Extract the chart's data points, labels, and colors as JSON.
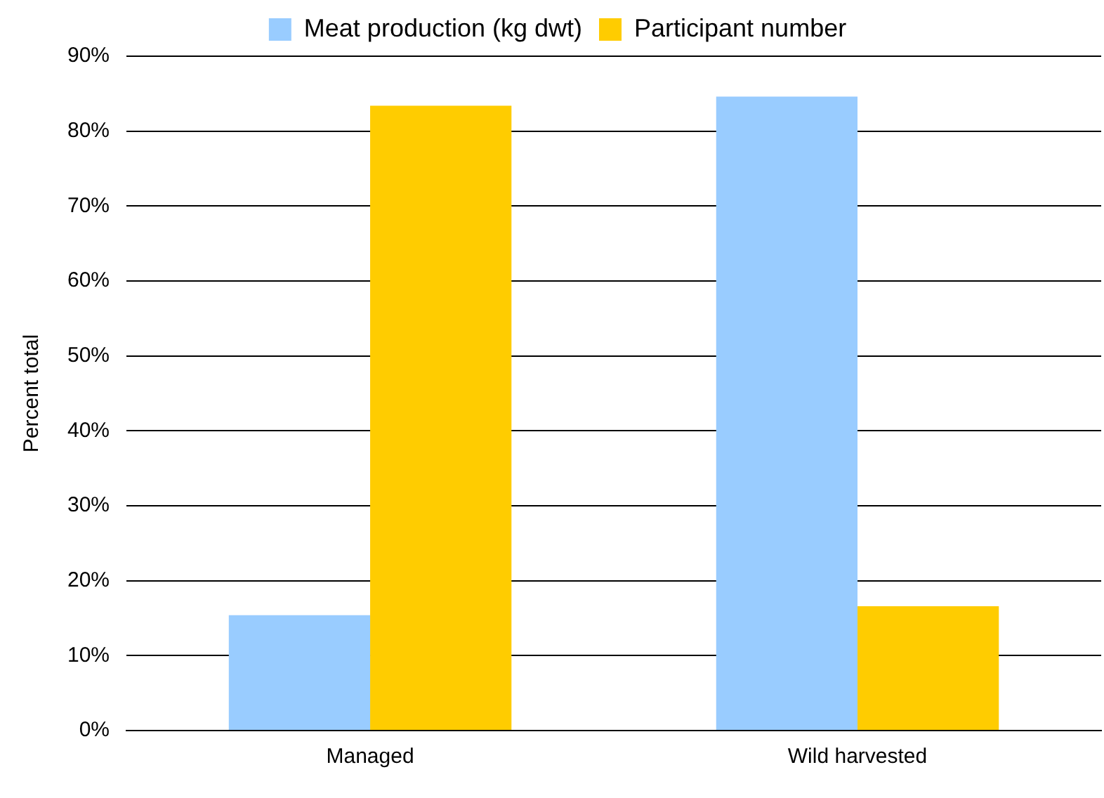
{
  "chart_data": {
    "type": "bar",
    "ylabel": "Percent total",
    "categories": [
      "Managed",
      "Wild harvested"
    ],
    "series": [
      {
        "name": "Meat production (kg dwt)",
        "color": "#99ccff",
        "values": [
          15.4,
          84.6
        ]
      },
      {
        "name": "Participant number",
        "color": "#ffcc00",
        "values": [
          83.4,
          16.6
        ]
      }
    ],
    "ylim": [
      0,
      90
    ],
    "yticks": [
      {
        "value": 0,
        "label": "0%"
      },
      {
        "value": 10,
        "label": "10%"
      },
      {
        "value": 20,
        "label": "20%"
      },
      {
        "value": 30,
        "label": "30%"
      },
      {
        "value": 40,
        "label": "40%"
      },
      {
        "value": 50,
        "label": "50%"
      },
      {
        "value": 60,
        "label": "60%"
      },
      {
        "value": 70,
        "label": "70%"
      },
      {
        "value": 80,
        "label": "80%"
      },
      {
        "value": 90,
        "label": "90%"
      }
    ],
    "grid": "y",
    "legend": "top"
  }
}
